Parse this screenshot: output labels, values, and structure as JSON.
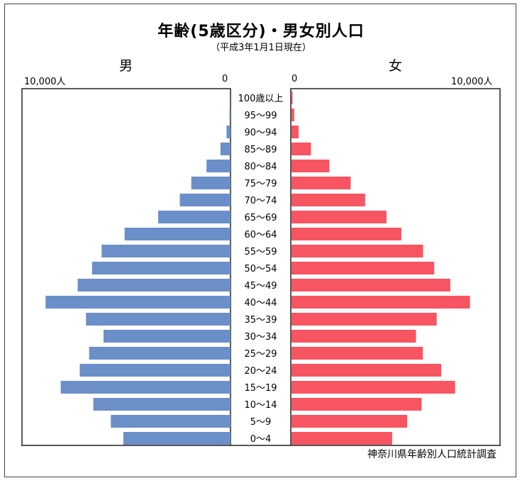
{
  "title": "年齢(5歳区分)・男女別人口",
  "subtitle": "（平成3年1月1日現在）",
  "male_label": "男",
  "female_label": "女",
  "male_axis": {
    "max_label": "10,000人",
    "zero_label": "0"
  },
  "female_axis": {
    "max_label": "10,000人",
    "zero_label": "0"
  },
  "source": "神奈川県年齢別人口統計調査",
  "colors": {
    "male": "#6b8fc8",
    "female": "#f75561"
  },
  "chart_data": {
    "type": "bar",
    "orientation": "horizontal",
    "xlim": [
      0,
      10000
    ],
    "categories": [
      "100歳以上",
      "95～99",
      "90～94",
      "85～89",
      "80～84",
      "75～79",
      "70～74",
      "65～69",
      "60～64",
      "55～59",
      "50～54",
      "45～49",
      "40～44",
      "35～39",
      "30～34",
      "25～29",
      "20～24",
      "15～19",
      "10～14",
      "5～9",
      "0～4"
    ],
    "series": [
      {
        "name": "男",
        "values": [
          0,
          50,
          190,
          480,
          1150,
          1880,
          2430,
          3470,
          5080,
          6180,
          6640,
          7330,
          8870,
          6930,
          6090,
          6780,
          7230,
          8140,
          6580,
          5740,
          5140
        ]
      },
      {
        "name": "女",
        "values": [
          50,
          130,
          340,
          930,
          1810,
          2830,
          3520,
          4540,
          5250,
          6290,
          6820,
          7590,
          8530,
          6940,
          5950,
          6280,
          7160,
          7820,
          6220,
          5530,
          4810
        ]
      }
    ]
  }
}
